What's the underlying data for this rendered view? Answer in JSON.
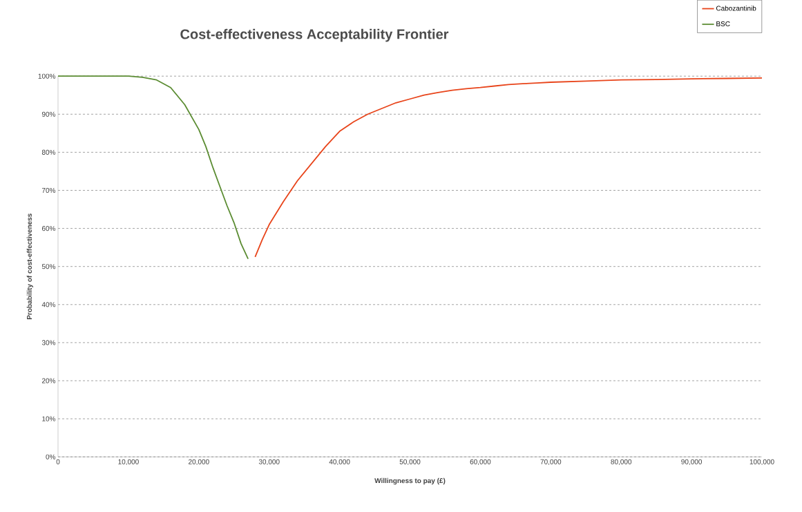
{
  "chart_data": {
    "type": "line",
    "title": "Cost-effectiveness Acceptability Frontier",
    "xlabel": "Willingness to pay (£)",
    "ylabel": "Probability of cost-effectiveness",
    "series": [
      {
        "name": "Cabozantinib",
        "color": "#e8441a",
        "x": [
          28000,
          29000,
          30000,
          32000,
          34000,
          36000,
          38000,
          40000,
          42000,
          44000,
          46000,
          48000,
          50000,
          52000,
          54000,
          56000,
          58000,
          60000,
          62000,
          64000,
          66000,
          68000,
          70000,
          75000,
          80000,
          85000,
          90000,
          95000,
          100000
        ],
        "values": [
          52.5,
          57,
          61,
          67,
          72.5,
          77,
          81.5,
          85.5,
          88,
          90,
          91.5,
          93,
          94,
          95,
          95.7,
          96.3,
          96.7,
          97,
          97.4,
          97.8,
          98,
          98.2,
          98.4,
          98.7,
          99,
          99.1,
          99.3,
          99.4,
          99.5
        ]
      },
      {
        "name": "BSC",
        "color": "#5b8c32",
        "x": [
          0,
          5000,
          10000,
          12000,
          14000,
          16000,
          18000,
          20000,
          21000,
          22000,
          23000,
          24000,
          25000,
          26000,
          27000
        ],
        "values": [
          100,
          100,
          100,
          99.7,
          99,
          97,
          92.5,
          86,
          81.5,
          76,
          71,
          66,
          61.5,
          56,
          52
        ]
      }
    ],
    "xlim": [
      0,
      100000
    ],
    "xticks": [
      0,
      {
        "value": 10000,
        "label": "10,000"
      },
      {
        "value": 20000,
        "label": "20,000"
      },
      {
        "value": 30000,
        "label": "30,000"
      },
      {
        "value": 40000,
        "label": "40,000"
      },
      {
        "value": 50000,
        "label": "50,000"
      },
      {
        "value": 60000,
        "label": "60,000"
      },
      {
        "value": 70000,
        "label": "70,000"
      },
      {
        "value": 80000,
        "label": "80,000"
      },
      {
        "value": 90000,
        "label": "90,000"
      },
      {
        "value": 100000,
        "label": "100,000"
      }
    ],
    "ylim": [
      0,
      100
    ],
    "yticks": [
      {
        "value": 0,
        "label": "0%"
      },
      {
        "value": 10,
        "label": "10%"
      },
      {
        "value": 20,
        "label": "20%"
      },
      {
        "value": 30,
        "label": "30%"
      },
      {
        "value": 40,
        "label": "40%"
      },
      {
        "value": 50,
        "label": "50%"
      },
      {
        "value": 60,
        "label": "60%"
      },
      {
        "value": 70,
        "label": "70%"
      },
      {
        "value": 80,
        "label": "80%"
      },
      {
        "value": 90,
        "label": "90%"
      },
      {
        "value": 100,
        "label": "100%"
      }
    ],
    "grid": "y",
    "legend": "top right",
    "marker": "none",
    "line_style": "solid"
  }
}
